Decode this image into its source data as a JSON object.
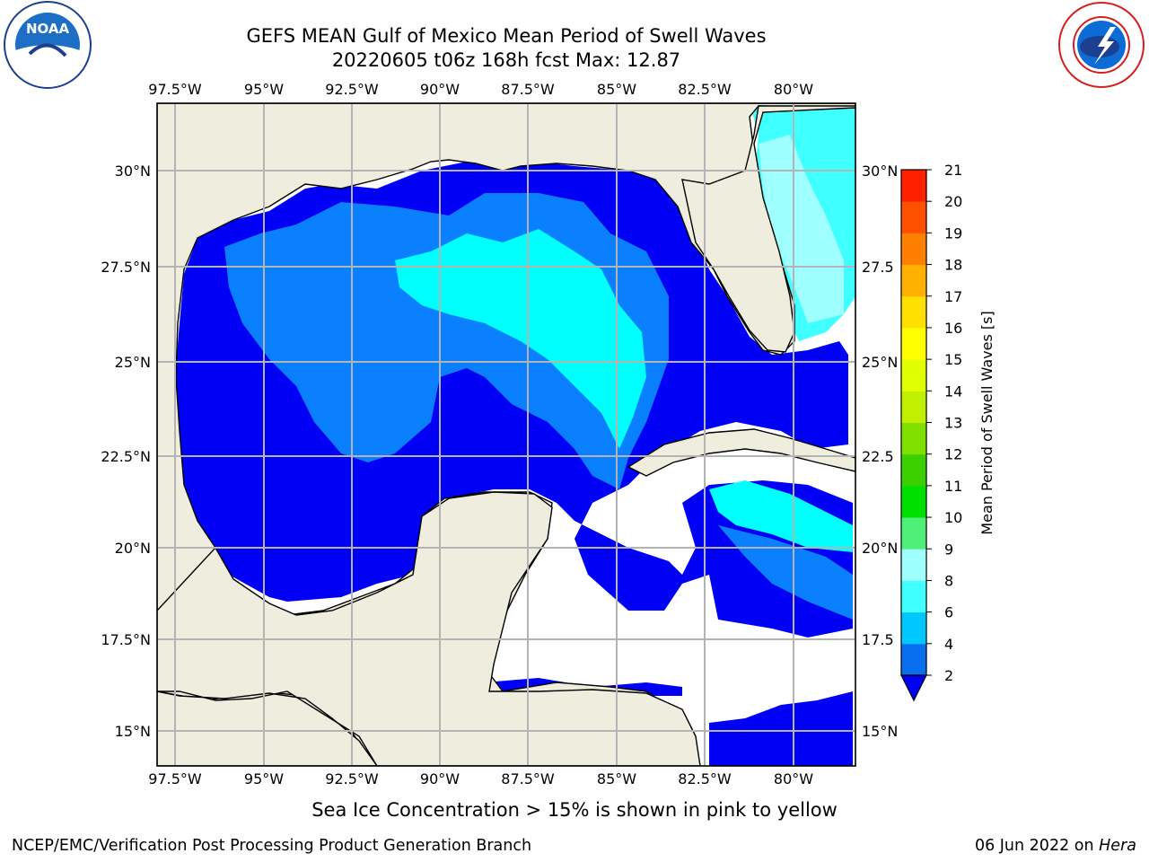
{
  "title": {
    "line1": "GEFS MEAN Gulf of Mexico Mean Period of Swell Waves",
    "line2": "20220605 t06z 168h fcst   Max: 12.87"
  },
  "map": {
    "lon_labels": [
      "97.5°W",
      "95°W",
      "92.5°W",
      "90°W",
      "87.5°W",
      "85°W",
      "82.5°W",
      "80°W"
    ],
    "lat_labels_left": [
      "30°N",
      "27.5°N",
      "25°N",
      "22.5°N",
      "20°N",
      "17.5°N",
      "15°N"
    ],
    "lat_labels_right": [
      "30°N",
      "27.5",
      "25°N",
      "22.5",
      "20°N",
      "17.5",
      "15°N"
    ],
    "colors": {
      "land": "#efedde",
      "ocean_2_4": "#0000f5",
      "ocean_4_6": "#0a80ff",
      "ocean_6_8": "#00ffff",
      "ocean_8_9": "#a0ffff",
      "grid": "#b4b4b4"
    }
  },
  "colorbar": {
    "label": "Mean Period of Swell Waves [s]",
    "ticks": [
      "2",
      "4",
      "6",
      "8",
      "9",
      "10",
      "11",
      "12",
      "13",
      "14",
      "15",
      "16",
      "17",
      "18",
      "19",
      "20",
      "21"
    ],
    "colors": [
      "#0a6ef0",
      "#00c8ff",
      "#40ffff",
      "#a0ffff",
      "#50f078",
      "#00e000",
      "#3cd000",
      "#80e000",
      "#c0f000",
      "#e0ff00",
      "#ffff00",
      "#ffe000",
      "#ffb000",
      "#ff8000",
      "#ff5000",
      "#ff2000"
    ]
  },
  "note": "Sea Ice Concentration > 15% is shown in pink to yellow",
  "footer": {
    "left": "NCEP/EMC/Verification Post Processing Product Generation Branch",
    "date": "06 Jun 2022 on ",
    "host": "Hera"
  },
  "logos": {
    "left": "noaa-logo",
    "right": "nws-logo"
  }
}
